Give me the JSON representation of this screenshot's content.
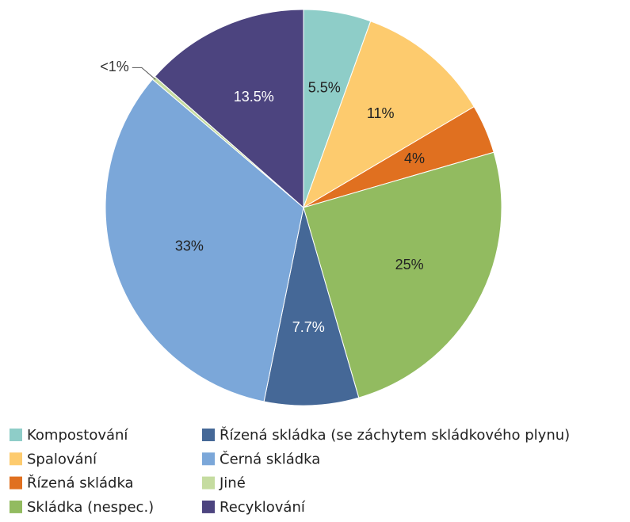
{
  "chart_data": {
    "type": "pie",
    "categories": [
      "Kompostování",
      "Spalování",
      "Řízená skládka",
      "Skládka (nespec.)",
      "Řízená skládka (se záchytem skládkového plynu)",
      "Černá skládka",
      "Jiné",
      "Recyklování"
    ],
    "values": [
      5.5,
      11,
      4,
      25,
      7.7,
      33,
      0.3,
      13.5
    ],
    "value_labels": [
      "5.5%",
      "11%",
      "4%",
      "25%",
      "7.7%",
      "33%",
      "<1%",
      "13.5%"
    ],
    "colors": [
      "#8ecdc8",
      "#fdcb6e",
      "#e07020",
      "#92bb60",
      "#456897",
      "#7ba7d9",
      "#c5dca0",
      "#4c447f"
    ],
    "legend": "bottom"
  }
}
